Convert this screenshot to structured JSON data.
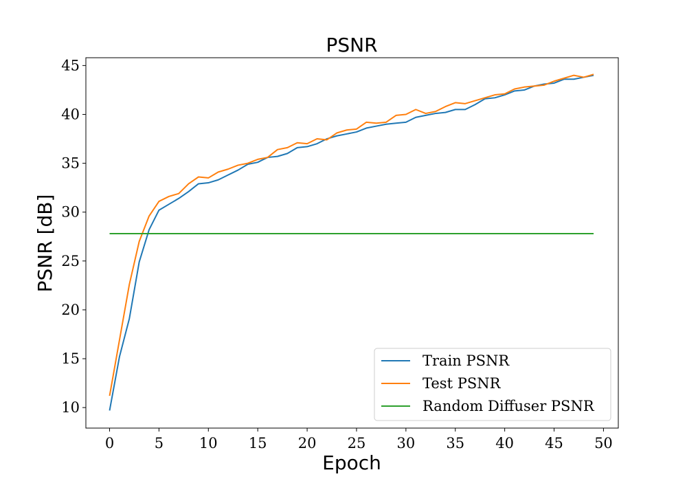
{
  "chart_data": {
    "type": "line",
    "title": "PSNR",
    "xlabel": "Epoch",
    "ylabel": "PSNR [dB]",
    "xlim": [
      -2.4,
      51.5
    ],
    "ylim": [
      7.9,
      45.8
    ],
    "xticks": [
      0,
      5,
      10,
      15,
      20,
      25,
      30,
      35,
      40,
      45,
      50
    ],
    "yticks": [
      10,
      15,
      20,
      25,
      30,
      35,
      40,
      45
    ],
    "grid": false,
    "legend_position": "lower-right",
    "x": [
      0,
      1,
      2,
      3,
      4,
      5,
      6,
      7,
      8,
      9,
      10,
      11,
      12,
      13,
      14,
      15,
      16,
      17,
      18,
      19,
      20,
      21,
      22,
      23,
      24,
      25,
      26,
      27,
      28,
      29,
      30,
      31,
      32,
      33,
      34,
      35,
      36,
      37,
      38,
      39,
      40,
      41,
      42,
      43,
      44,
      45,
      46,
      47,
      48,
      49
    ],
    "series": [
      {
        "name": "Train PSNR",
        "color": "#1f77b4",
        "values": [
          9.7,
          15.2,
          19.1,
          24.9,
          28.2,
          30.2,
          30.8,
          31.4,
          32.1,
          32.9,
          33.0,
          33.3,
          33.8,
          34.3,
          34.9,
          35.1,
          35.6,
          35.7,
          36.0,
          36.6,
          36.7,
          37.0,
          37.5,
          37.8,
          38.0,
          38.2,
          38.6,
          38.8,
          39.0,
          39.1,
          39.2,
          39.7,
          39.9,
          40.1,
          40.2,
          40.5,
          40.5,
          41.0,
          41.6,
          41.7,
          42.0,
          42.4,
          42.5,
          42.9,
          43.1,
          43.2,
          43.6,
          43.6,
          43.8,
          44.0
        ]
      },
      {
        "name": "Test PSNR",
        "color": "#ff7f0e",
        "values": [
          11.2,
          16.9,
          22.6,
          27.0,
          29.6,
          31.1,
          31.6,
          31.9,
          32.9,
          33.6,
          33.5,
          34.1,
          34.4,
          34.8,
          35.0,
          35.4,
          35.6,
          36.4,
          36.6,
          37.1,
          37.0,
          37.5,
          37.4,
          38.1,
          38.4,
          38.5,
          39.2,
          39.1,
          39.2,
          39.9,
          40.0,
          40.5,
          40.1,
          40.3,
          40.8,
          41.2,
          41.1,
          41.4,
          41.7,
          42.0,
          42.1,
          42.6,
          42.8,
          42.9,
          43.0,
          43.4,
          43.7,
          44.0,
          43.8,
          44.1
        ]
      },
      {
        "name": "Random Diffuser PSNR",
        "color": "#2ca02c",
        "values": [
          27.8,
          27.8,
          27.8,
          27.8,
          27.8,
          27.8,
          27.8,
          27.8,
          27.8,
          27.8,
          27.8,
          27.8,
          27.8,
          27.8,
          27.8,
          27.8,
          27.8,
          27.8,
          27.8,
          27.8,
          27.8,
          27.8,
          27.8,
          27.8,
          27.8,
          27.8,
          27.8,
          27.8,
          27.8,
          27.8,
          27.8,
          27.8,
          27.8,
          27.8,
          27.8,
          27.8,
          27.8,
          27.8,
          27.8,
          27.8,
          27.8,
          27.8,
          27.8,
          27.8,
          27.8,
          27.8,
          27.8,
          27.8,
          27.8,
          27.8
        ]
      }
    ]
  }
}
